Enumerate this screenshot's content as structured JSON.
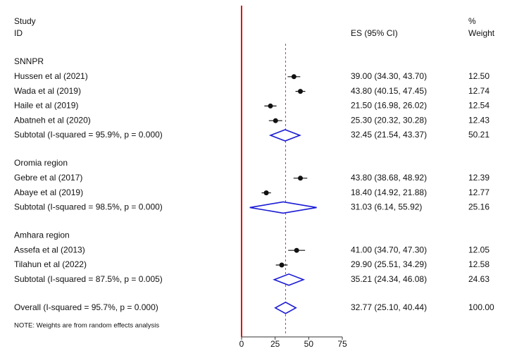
{
  "chart_data": {
    "type": "forest",
    "headers": {
      "study": "Study",
      "id": "ID",
      "es": "ES (95% CI)",
      "pct": "%",
      "weight": "Weight"
    },
    "xlim": [
      0,
      75
    ],
    "xticks": [
      0,
      25,
      50,
      75
    ],
    "zero_line_color": "#e01010",
    "point_color": "#111111",
    "diamond_color": "#1a1ad6",
    "reference_line_color": "#c04060",
    "groups": [
      {
        "name": "SNNPR",
        "studies": [
          {
            "label": "Hussen et al (2021)",
            "es": 39.0,
            "ci_low": 34.3,
            "ci_high": 43.7,
            "es_label": "39.00 (34.30, 43.70)",
            "weight": "12.50"
          },
          {
            "label": "Wada et al (2019)",
            "es": 43.8,
            "ci_low": 40.15,
            "ci_high": 47.45,
            "es_label": "43.80 (40.15, 47.45)",
            "weight": "12.74"
          },
          {
            "label": "Haile et al (2019)",
            "es": 21.5,
            "ci_low": 16.98,
            "ci_high": 26.02,
            "es_label": "21.50 (16.98, 26.02)",
            "weight": "12.54"
          },
          {
            "label": "Abatneh et al (2020)",
            "es": 25.3,
            "ci_low": 20.32,
            "ci_high": 30.28,
            "es_label": "25.30 (20.32, 30.28)",
            "weight": "12.43"
          }
        ],
        "subtotal": {
          "label": "Subtotal (I-squared = 95.9%, p = 0.000)",
          "es": 32.45,
          "ci_low": 21.54,
          "ci_high": 43.37,
          "es_label": "32.45 (21.54, 43.37)",
          "weight": "50.21"
        }
      },
      {
        "name": "Oromia region",
        "studies": [
          {
            "label": "Gebre et al (2017)",
            "es": 43.8,
            "ci_low": 38.68,
            "ci_high": 48.92,
            "es_label": "43.80 (38.68, 48.92)",
            "weight": "12.39"
          },
          {
            "label": "Abaye et al (2019)",
            "es": 18.4,
            "ci_low": 14.92,
            "ci_high": 21.88,
            "es_label": "18.40 (14.92, 21.88)",
            "weight": "12.77"
          }
        ],
        "subtotal": {
          "label": "Subtotal (I-squared = 98.5%, p = 0.000)",
          "es": 31.03,
          "ci_low": 6.14,
          "ci_high": 55.92,
          "es_label": "31.03 (6.14, 55.92)",
          "weight": "25.16"
        }
      },
      {
        "name": "Amhara region",
        "studies": [
          {
            "label": "Assefa et al (2013)",
            "es": 41.0,
            "ci_low": 34.7,
            "ci_high": 47.3,
            "es_label": "41.00 (34.70, 47.30)",
            "weight": "12.05"
          },
          {
            "label": "Tilahun et al (2022)",
            "es": 29.9,
            "ci_low": 25.51,
            "ci_high": 34.29,
            "es_label": "29.90 (25.51, 34.29)",
            "weight": "12.58"
          }
        ],
        "subtotal": {
          "label": "Subtotal (I-squared = 87.5%, p = 0.005)",
          "es": 35.21,
          "ci_low": 24.34,
          "ci_high": 46.08,
          "es_label": "35.21 (24.34, 46.08)",
          "weight": "24.63"
        }
      }
    ],
    "overall": {
      "label": "Overall (I-squared = 95.7%, p = 0.000)",
      "es": 32.77,
      "ci_low": 25.1,
      "ci_high": 40.44,
      "es_label": "32.77 (25.10, 40.44)",
      "weight": "100.00"
    },
    "note": "NOTE: Weights are from random effects analysis"
  }
}
